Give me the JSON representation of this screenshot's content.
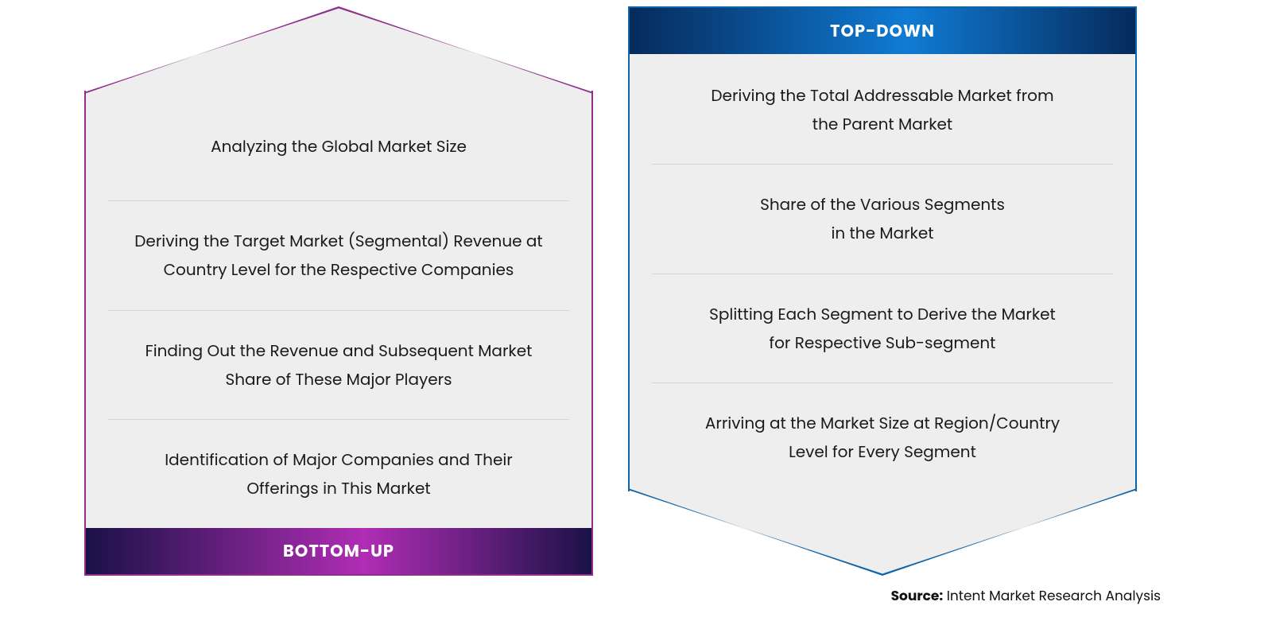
{
  "type": "infographic",
  "layout": "two-column-arrow-panels",
  "background_color": "#ffffff",
  "panel_bg": "#eeeeee",
  "divider_color": "rgba(0,0,0,0.10)",
  "text_color": "#1a1a1a",
  "item_fontsize": 20,
  "title_fontsize": 21,
  "panels": {
    "bottom_up": {
      "direction": "up",
      "title": "BOTTOM-UP",
      "border_color": "#8f2f8b",
      "title_gradient_from": "#1a1147",
      "title_gradient_to": "#b02db4",
      "items": [
        "Analyzing the Global Market Size",
        "Deriving the Target Market (Segmental) Revenue at\nCountry Level for the Respective Companies",
        "Finding Out the Revenue and Subsequent Market\nShare of These Major Players",
        "Identification of Major Companies and Their\nOfferings in This Market"
      ]
    },
    "top_down": {
      "direction": "down",
      "title": "TOP-DOWN",
      "border_color": "#0f64a8",
      "title_gradient_from": "#062a5b",
      "title_gradient_to": "#0f7bd4",
      "items": [
        "Deriving the Total Addressable Market from\nthe Parent Market",
        "Share of the Various Segments\nin the Market",
        "Splitting Each Segment to Derive the Market\nfor Respective Sub-segment",
        "Arriving at the Market Size at Region/Country\nLevel for Every Segment"
      ]
    }
  },
  "source": {
    "label": "Source:",
    "text": "Intent Market Research Analysis"
  }
}
